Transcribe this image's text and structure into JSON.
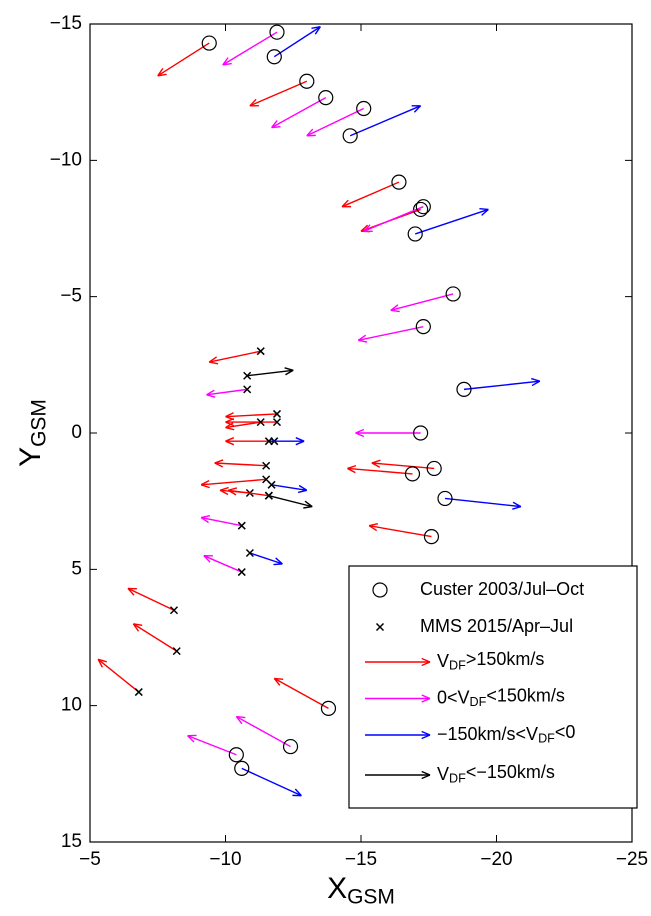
{
  "chart_data": {
    "type": "vector",
    "xlabel": [
      "X",
      "GSM"
    ],
    "ylabel": [
      "Y",
      "GSM"
    ],
    "xlim": [
      -5,
      -25
    ],
    "ylim": [
      -15,
      15
    ],
    "xticks": [
      {
        "value": -5,
        "label": "−5"
      },
      {
        "value": -10,
        "label": "−10"
      },
      {
        "value": -15,
        "label": "−15"
      },
      {
        "value": -20,
        "label": "−20"
      },
      {
        "value": -25,
        "label": "−25"
      }
    ],
    "yticks": [
      {
        "value": -15,
        "label": "−15"
      },
      {
        "value": -10,
        "label": "−10"
      },
      {
        "value": -5,
        "label": "−5"
      },
      0,
      5,
      10,
      15
    ],
    "grid": false,
    "legend": "lower right",
    "markers": [
      {
        "name": "Custer 2003/Jul–Oct",
        "symbol": "circle"
      },
      {
        "name": "MMS 2015/Apr–Jul",
        "symbol": "cross"
      }
    ],
    "series": [
      {
        "name": [
          "V",
          "DF",
          ">150km/s"
        ],
        "color": "#ff0000",
        "x": [
          -9.4,
          -13.0,
          -16.4,
          -17.2,
          -17.7,
          -16.9,
          -17.6,
          -13.8,
          -11.3,
          -11.9,
          -11.9,
          -11.3,
          -11.8,
          -11.5,
          -11.5,
          -10.9,
          -11.6,
          -8.1,
          -8.2,
          -6.8
        ],
        "y": [
          -14.3,
          -12.9,
          -9.2,
          -8.2,
          1.3,
          1.5,
          3.8,
          10.1,
          -3.0,
          -0.7,
          -0.4,
          -0.4,
          0.3,
          1.2,
          1.7,
          2.2,
          2.3,
          6.5,
          8.0,
          9.5
        ],
        "u": [
          1.9,
          2.1,
          2.1,
          2.2,
          2.3,
          2.4,
          2.3,
          2.0,
          1.9,
          1.9,
          1.9,
          1.3,
          1.8,
          1.9,
          2.4,
          1.1,
          1.5,
          1.7,
          1.6,
          1.5
        ],
        "v": [
          1.2,
          0.9,
          0.9,
          0.8,
          -0.2,
          -0.2,
          -0.4,
          -1.1,
          0.4,
          0.1,
          0.0,
          0.2,
          0.0,
          -0.1,
          0.2,
          -0.1,
          -0.2,
          -0.8,
          -1.0,
          -1.2
        ],
        "marker": [
          0,
          0,
          0,
          0,
          0,
          0,
          0,
          0,
          1,
          1,
          1,
          1,
          1,
          1,
          1,
          1,
          1,
          1,
          1,
          1
        ]
      },
      {
        "name": [
          "0<V",
          "DF",
          "<150km/s"
        ],
        "color": "#ff00ff",
        "x": [
          -11.9,
          -13.7,
          -15.1,
          -17.3,
          -18.4,
          -17.3,
          -17.2,
          -12.4,
          -10.4,
          -10.8,
          -10.6,
          -10.6
        ],
        "y": [
          -14.7,
          -12.3,
          -11.9,
          -8.3,
          -5.1,
          -3.9,
          0.0,
          11.5,
          11.8,
          -1.6,
          3.4,
          5.1
        ],
        "u": [
          2.0,
          2.0,
          2.1,
          2.2,
          2.3,
          2.4,
          2.4,
          2.0,
          1.8,
          1.5,
          1.5,
          1.4
        ],
        "v": [
          1.2,
          1.1,
          1.0,
          0.9,
          0.6,
          0.5,
          0.0,
          -1.1,
          -0.7,
          0.2,
          -0.3,
          -0.6
        ],
        "marker": [
          0,
          0,
          0,
          0,
          0,
          0,
          0,
          0,
          0,
          1,
          1,
          1
        ]
      },
      {
        "name": [
          "−150km/s<V",
          "DF",
          "<0"
        ],
        "color": "#0000ff",
        "x": [
          -11.8,
          -14.6,
          -17.0,
          -18.8,
          -18.1,
          -10.6,
          -11.6,
          -11.7,
          -10.9
        ],
        "y": [
          -13.8,
          -10.9,
          -7.3,
          -1.6,
          2.4,
          12.3,
          0.3,
          1.9,
          4.4
        ],
        "u": [
          -1.7,
          -2.6,
          -2.7,
          -2.8,
          -2.8,
          -2.2,
          -1.3,
          -1.3,
          -1.2
        ],
        "v": [
          -1.1,
          -1.1,
          -0.9,
          -0.3,
          0.3,
          1.0,
          0.0,
          0.2,
          0.4
        ],
        "marker": [
          0,
          0,
          0,
          0,
          0,
          0,
          1,
          1,
          1
        ]
      },
      {
        "name": [
          "V",
          "DF",
          "<−150km/s"
        ],
        "color": "#000000",
        "x": [
          -10.8,
          -11.6
        ],
        "y": [
          -2.1,
          2.3
        ],
        "u": [
          -1.7,
          -1.6
        ],
        "v": [
          -0.2,
          0.4
        ],
        "marker": [
          1,
          1
        ]
      }
    ]
  }
}
